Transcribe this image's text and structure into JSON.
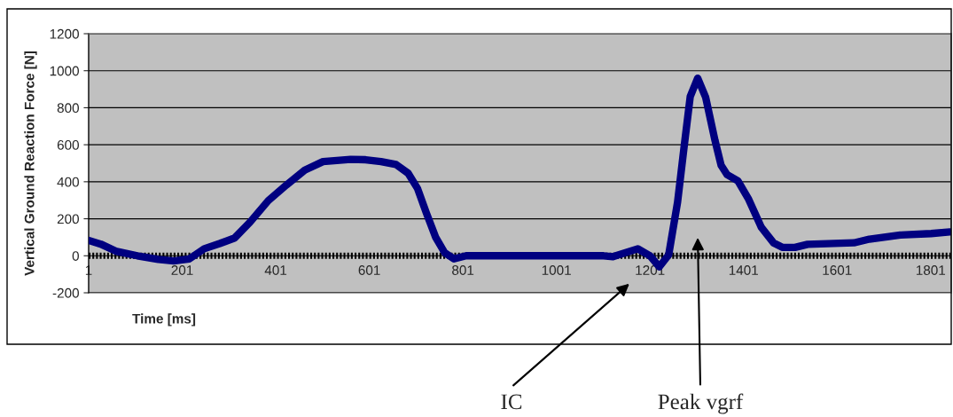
{
  "chart_data": {
    "type": "line",
    "xlabel": "Time [ms]",
    "ylabel": "Vertical Ground Reaction Force [N]",
    "x": [
      1,
      27,
      59,
      105,
      150,
      183,
      216,
      248,
      281,
      313,
      346,
      385,
      424,
      463,
      502,
      561,
      593,
      626,
      658,
      684,
      704,
      723,
      743,
      762,
      782,
      808,
      900,
      1000,
      1102,
      1122,
      1175,
      1201,
      1221,
      1241,
      1260,
      1274,
      1287,
      1303,
      1320,
      1340,
      1353,
      1366,
      1389,
      1412,
      1439,
      1465,
      1485,
      1511,
      1538,
      1637,
      1670,
      1736,
      1802,
      1842
    ],
    "series": [
      {
        "color": "#000080",
        "values": [
          83,
          63,
          25,
          0,
          -20,
          -28,
          -17,
          38,
          66,
          96,
          182,
          298,
          383,
          463,
          509,
          521,
          519,
          509,
          493,
          446,
          364,
          231,
          99,
          17,
          -17,
          0,
          0,
          0,
          0,
          -5,
          38,
          0,
          -60,
          5,
          290,
          590,
          860,
          960,
          857,
          623,
          489,
          438,
          405,
          305,
          154,
          70,
          45,
          45,
          62,
          70,
          90,
          112,
          120,
          129
        ]
      }
    ],
    "xlim": [
      1,
      1845
    ],
    "xticks": [
      1,
      201,
      401,
      601,
      801,
      1001,
      1201,
      1401,
      1601,
      1801
    ],
    "ylim": [
      -200,
      1200
    ],
    "yticks": [
      -200,
      0,
      200,
      400,
      600,
      800,
      1000,
      1200
    ],
    "grid": "y",
    "marker": "none",
    "line_style": "solid",
    "ref_lines": [
      {
        "axis": "y",
        "value": 0,
        "color": "#000000",
        "line_style": "dotted"
      }
    ],
    "annotations": [
      "IC",
      "Peak vgrf"
    ]
  }
}
